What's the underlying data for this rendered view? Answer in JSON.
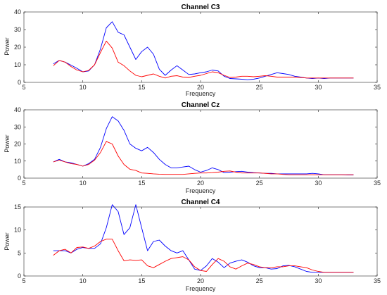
{
  "chart_data": [
    {
      "type": "line",
      "title": "Channel C3",
      "xlabel": "Frequency",
      "ylabel": "Power",
      "xlim": [
        5,
        35
      ],
      "ylim": [
        0,
        40
      ],
      "xticks": [
        5,
        10,
        15,
        20,
        25,
        30,
        35
      ],
      "yticks": [
        0,
        10,
        20,
        30,
        40
      ],
      "x": [
        7.5,
        8,
        8.5,
        9,
        9.5,
        10,
        10.5,
        11,
        11.5,
        12,
        12.5,
        13,
        13.5,
        14,
        14.5,
        15,
        15.5,
        16,
        16.5,
        17,
        17.5,
        18,
        18.5,
        19,
        19.5,
        20,
        20.5,
        21,
        21.5,
        22,
        22.5,
        23,
        23.5,
        24,
        24.5,
        25,
        25.5,
        26,
        26.5,
        27,
        27.5,
        28,
        28.5,
        29,
        29.5,
        30,
        30.5,
        31,
        31.5,
        32,
        32.5,
        33
      ],
      "series": [
        {
          "color": "#0000ff",
          "values": [
            10.5,
            12.5,
            11.5,
            9.8,
            8,
            6,
            6.5,
            10,
            19,
            31,
            34.5,
            28.5,
            27,
            20,
            13,
            17.5,
            20,
            16,
            7.5,
            4,
            7,
            9.5,
            7,
            4.5,
            4.8,
            5.5,
            6,
            7,
            6.5,
            3.5,
            2.2,
            2,
            1.8,
            1.5,
            1.8,
            2.5,
            3.5,
            4.5,
            5.5,
            5,
            4.5,
            3.5,
            3,
            2.5,
            2.2,
            2.5,
            2.2,
            2.5,
            2.5,
            2.5,
            2.5,
            2.5
          ]
        },
        {
          "color": "#ff0000",
          "values": [
            9.5,
            12.5,
            11.5,
            9,
            7,
            6,
            6.8,
            10,
            17,
            23.5,
            19.5,
            11.5,
            9.5,
            6.5,
            4,
            3.2,
            4,
            4.8,
            3.5,
            2.5,
            3.5,
            3.8,
            3,
            2.8,
            3.5,
            4,
            5,
            6,
            5.5,
            4,
            2.8,
            3,
            3.5,
            3.5,
            3.2,
            3.5,
            3.8,
            3.5,
            3,
            3,
            3,
            3,
            2.8,
            2.5,
            2.5,
            2.5,
            2.5,
            2.5,
            2.5,
            2.5,
            2.5,
            2.5
          ]
        }
      ]
    },
    {
      "type": "line",
      "title": "Channel Cz",
      "xlabel": "Frequency",
      "ylabel": "Power",
      "xlim": [
        5,
        35
      ],
      "ylim": [
        0,
        40
      ],
      "xticks": [
        5,
        10,
        15,
        20,
        25,
        30,
        35
      ],
      "yticks": [
        0,
        10,
        20,
        30,
        40
      ],
      "x": [
        7.5,
        8,
        8.5,
        9,
        9.5,
        10,
        10.5,
        11,
        11.5,
        12,
        12.5,
        13,
        13.5,
        14,
        14.5,
        15,
        15.5,
        16,
        16.5,
        17,
        17.5,
        18,
        18.5,
        19,
        19.5,
        20,
        20.5,
        21,
        21.5,
        22,
        22.5,
        23,
        23.5,
        24,
        24.5,
        25,
        25.5,
        26,
        26.5,
        27,
        27.5,
        28,
        28.5,
        29,
        29.5,
        30,
        30.5,
        31,
        31.5,
        32,
        32.5,
        33
      ],
      "series": [
        {
          "color": "#0000ff",
          "values": [
            9.5,
            11,
            9.5,
            9,
            8,
            7,
            8.5,
            11,
            18,
            29,
            36,
            33.5,
            28,
            20,
            17.5,
            16,
            18,
            15,
            11,
            8,
            6,
            6,
            6.5,
            7,
            5,
            3.5,
            4.5,
            6,
            5,
            3.2,
            3.5,
            3.8,
            4,
            3.5,
            3.2,
            3,
            2.8,
            2.8,
            2.5,
            2.5,
            2.5,
            2.5,
            2.5,
            2.5,
            2.8,
            2.5,
            2,
            2,
            2,
            2,
            1.8,
            1.8
          ]
        },
        {
          "color": "#ff0000",
          "values": [
            9.5,
            10.5,
            9.5,
            8.5,
            8,
            7,
            8,
            10.5,
            15,
            21.5,
            20,
            13,
            8,
            5.2,
            4.5,
            3,
            2.8,
            2.5,
            2.3,
            2.2,
            2.2,
            2.2,
            2.2,
            2.5,
            2.8,
            3,
            3,
            3.2,
            3.5,
            4,
            4.2,
            3.5,
            3,
            3,
            3,
            3,
            2.8,
            2.5,
            2.5,
            2.2,
            2,
            2,
            2,
            2,
            2,
            2,
            2,
            2,
            2,
            2,
            2,
            2
          ]
        }
      ]
    },
    {
      "type": "line",
      "title": "Channel C4",
      "xlabel": "Frequency",
      "ylabel": "Power",
      "xlim": [
        5,
        35
      ],
      "ylim": [
        0,
        15
      ],
      "xticks": [
        5,
        10,
        15,
        20,
        25,
        30,
        35
      ],
      "yticks": [
        0,
        5,
        10,
        15
      ],
      "x": [
        7.5,
        8,
        8.5,
        9,
        9.5,
        10,
        10.5,
        11,
        11.5,
        12,
        12.5,
        13,
        13.5,
        14,
        14.5,
        15,
        15.5,
        16,
        16.5,
        17,
        17.5,
        18,
        18.5,
        19,
        19.5,
        20,
        20.5,
        21,
        21.5,
        22,
        22.5,
        23,
        23.5,
        24,
        24.5,
        25,
        25.5,
        26,
        26.5,
        27,
        27.5,
        28,
        28.5,
        29,
        29.5,
        30,
        30.5,
        31,
        31.5,
        32,
        32.5,
        33
      ],
      "series": [
        {
          "color": "#0000ff",
          "values": [
            5.5,
            5.5,
            5.5,
            5,
            5.8,
            6.2,
            6,
            6,
            7,
            10.5,
            15.5,
            14,
            9,
            10.5,
            15.5,
            10.5,
            5.5,
            7.5,
            7.8,
            6.5,
            5.5,
            5,
            5.5,
            3.5,
            1.5,
            1.2,
            2.2,
            3.8,
            3,
            1.8,
            2.8,
            3.2,
            3.5,
            3,
            2.2,
            1.8,
            1.8,
            1.5,
            1.6,
            2.2,
            2.3,
            2,
            1.5,
            1,
            0.8,
            0.8,
            0.8,
            0.8,
            0.8,
            0.8,
            0.8,
            0.8
          ]
        },
        {
          "color": "#ff0000",
          "values": [
            4.5,
            5.5,
            5.8,
            5,
            6.2,
            6.3,
            6,
            6.5,
            7.5,
            8,
            8,
            5.5,
            3.3,
            3.5,
            3.4,
            3.5,
            2.2,
            1.8,
            2.5,
            3.2,
            3.8,
            4,
            4.2,
            3.5,
            2,
            1.2,
            1,
            2.5,
            3.8,
            3.2,
            2,
            1.5,
            2.2,
            2.8,
            2.5,
            2,
            1.8,
            1.8,
            2,
            2,
            2.2,
            2.2,
            2,
            1.8,
            1.3,
            1,
            0.8,
            0.8,
            0.8,
            0.8,
            0.8,
            0.8
          ]
        }
      ]
    }
  ]
}
